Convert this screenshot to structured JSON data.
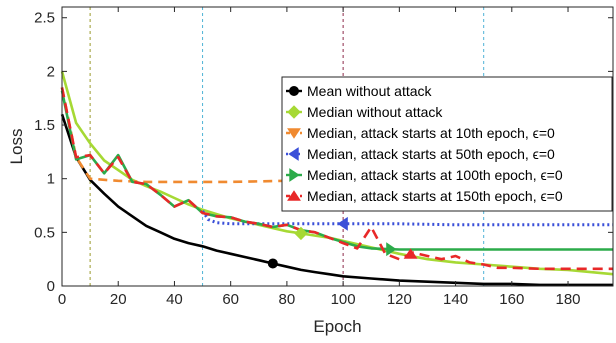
{
  "chart_data": {
    "type": "line",
    "title": "",
    "xlabel": "Epoch",
    "ylabel": "Loss",
    "xlim": [
      0,
      196
    ],
    "ylim": [
      0,
      2.6
    ],
    "xticks": [
      0,
      20,
      40,
      60,
      80,
      100,
      120,
      140,
      160,
      180
    ],
    "yticks": [
      0,
      0.5,
      1,
      1.5,
      2,
      2.5
    ],
    "xtick_labels": [
      "0",
      "20",
      "40",
      "60",
      "80",
      "100",
      "120",
      "140",
      "160",
      "180"
    ],
    "ytick_labels": [
      "0",
      "0.5",
      "1",
      "1.5",
      "2",
      "2.5"
    ],
    "grid": false,
    "legend_position": "top-right",
    "vertical_lines": [
      {
        "x": 10,
        "color": "#9a9a2c"
      },
      {
        "x": 50,
        "color": "#4fb3d6"
      },
      {
        "x": 100,
        "color": "#8c2a4a"
      },
      {
        "x": 150,
        "color": "#4fb3d6"
      }
    ],
    "series": [
      {
        "name": "Mean without attack",
        "color": "#000000",
        "dash": "",
        "marker": "circle",
        "marker_x": 75,
        "x": [
          0,
          5,
          10,
          15,
          20,
          25,
          30,
          35,
          40,
          45,
          50,
          55,
          60,
          65,
          70,
          75,
          80,
          85,
          90,
          95,
          100,
          110,
          120,
          130,
          140,
          150,
          160,
          170,
          180,
          196
        ],
        "y": [
          1.6,
          1.2,
          0.99,
          0.86,
          0.74,
          0.65,
          0.56,
          0.5,
          0.44,
          0.4,
          0.37,
          0.33,
          0.3,
          0.27,
          0.24,
          0.21,
          0.18,
          0.15,
          0.13,
          0.11,
          0.09,
          0.07,
          0.05,
          0.04,
          0.03,
          0.02,
          0.02,
          0.01,
          0.01,
          0.01
        ]
      },
      {
        "name": "Median without attack",
        "color": "#a6d934",
        "dash": "",
        "marker": "diamond",
        "marker_x": 85,
        "x": [
          0,
          5,
          10,
          15,
          20,
          25,
          30,
          35,
          40,
          45,
          50,
          55,
          60,
          65,
          70,
          75,
          80,
          85,
          90,
          95,
          100,
          110,
          120,
          130,
          140,
          150,
          160,
          170,
          180,
          196
        ],
        "y": [
          2.0,
          1.52,
          1.33,
          1.17,
          1.08,
          0.99,
          0.93,
          0.88,
          0.82,
          0.76,
          0.71,
          0.67,
          0.63,
          0.6,
          0.57,
          0.54,
          0.51,
          0.49,
          0.47,
          0.45,
          0.42,
          0.36,
          0.3,
          0.25,
          0.22,
          0.2,
          0.18,
          0.16,
          0.15,
          0.11
        ]
      },
      {
        "name": "Median, attack starts at 10th epoch, ϵ=0",
        "color": "#f08a30",
        "dash": "9,6",
        "marker": "triangle-down",
        "marker_x": null,
        "x": [
          0,
          5,
          10,
          15,
          20,
          30,
          40,
          50,
          60,
          80,
          100,
          120,
          140,
          160,
          180,
          196
        ],
        "y": [
          1.85,
          1.2,
          1.0,
          0.99,
          0.98,
          0.97,
          0.97,
          0.97,
          0.97,
          0.98,
          0.98,
          0.98,
          0.98,
          0.98,
          0.98,
          0.98
        ]
      },
      {
        "name": "Median, attack starts at 50th epoch, ϵ=0",
        "color": "#3a4fd8",
        "dash": "2,3",
        "marker": "triangle-left",
        "marker_x": 100,
        "x": [
          50,
          52,
          55,
          60,
          70,
          80,
          90,
          100,
          110,
          120,
          140,
          160,
          180,
          196
        ],
        "y": [
          0.7,
          0.62,
          0.59,
          0.58,
          0.58,
          0.58,
          0.58,
          0.58,
          0.58,
          0.58,
          0.57,
          0.57,
          0.57,
          0.57
        ]
      },
      {
        "name": "Median, attack starts at 100th epoch, ϵ=0",
        "color": "#2cab4a",
        "dash": "",
        "marker": "triangle-right",
        "marker_x": 117,
        "x": [
          0,
          5,
          10,
          15,
          20,
          25,
          30,
          35,
          40,
          45,
          50,
          55,
          60,
          65,
          70,
          75,
          80,
          85,
          90,
          95,
          100,
          105,
          110,
          120,
          140,
          160,
          180,
          196
        ],
        "y": [
          1.82,
          1.18,
          1.22,
          1.05,
          1.22,
          0.97,
          0.95,
          0.85,
          0.74,
          0.8,
          0.68,
          0.65,
          0.64,
          0.6,
          0.58,
          0.55,
          0.57,
          0.52,
          0.5,
          0.45,
          0.41,
          0.37,
          0.35,
          0.34,
          0.34,
          0.34,
          0.34,
          0.34
        ]
      },
      {
        "name": "Median, attack starts at 150th epoch, ϵ=0",
        "color": "#e82828",
        "dash": "10,6",
        "marker": "triangle-up",
        "marker_x": 124,
        "x": [
          0,
          5,
          10,
          15,
          20,
          25,
          30,
          35,
          40,
          45,
          50,
          55,
          60,
          65,
          70,
          75,
          80,
          85,
          90,
          95,
          100,
          105,
          110,
          115,
          120,
          125,
          130,
          135,
          140,
          145,
          150,
          155,
          160,
          170,
          180,
          196
        ],
        "y": [
          1.85,
          1.2,
          1.22,
          1.05,
          1.2,
          0.97,
          0.95,
          0.85,
          0.74,
          0.8,
          0.68,
          0.65,
          0.64,
          0.6,
          0.58,
          0.55,
          0.57,
          0.52,
          0.5,
          0.45,
          0.4,
          0.35,
          0.55,
          0.3,
          0.25,
          0.31,
          0.28,
          0.25,
          0.28,
          0.22,
          0.2,
          0.17,
          0.17,
          0.16,
          0.16,
          0.16
        ]
      }
    ]
  }
}
